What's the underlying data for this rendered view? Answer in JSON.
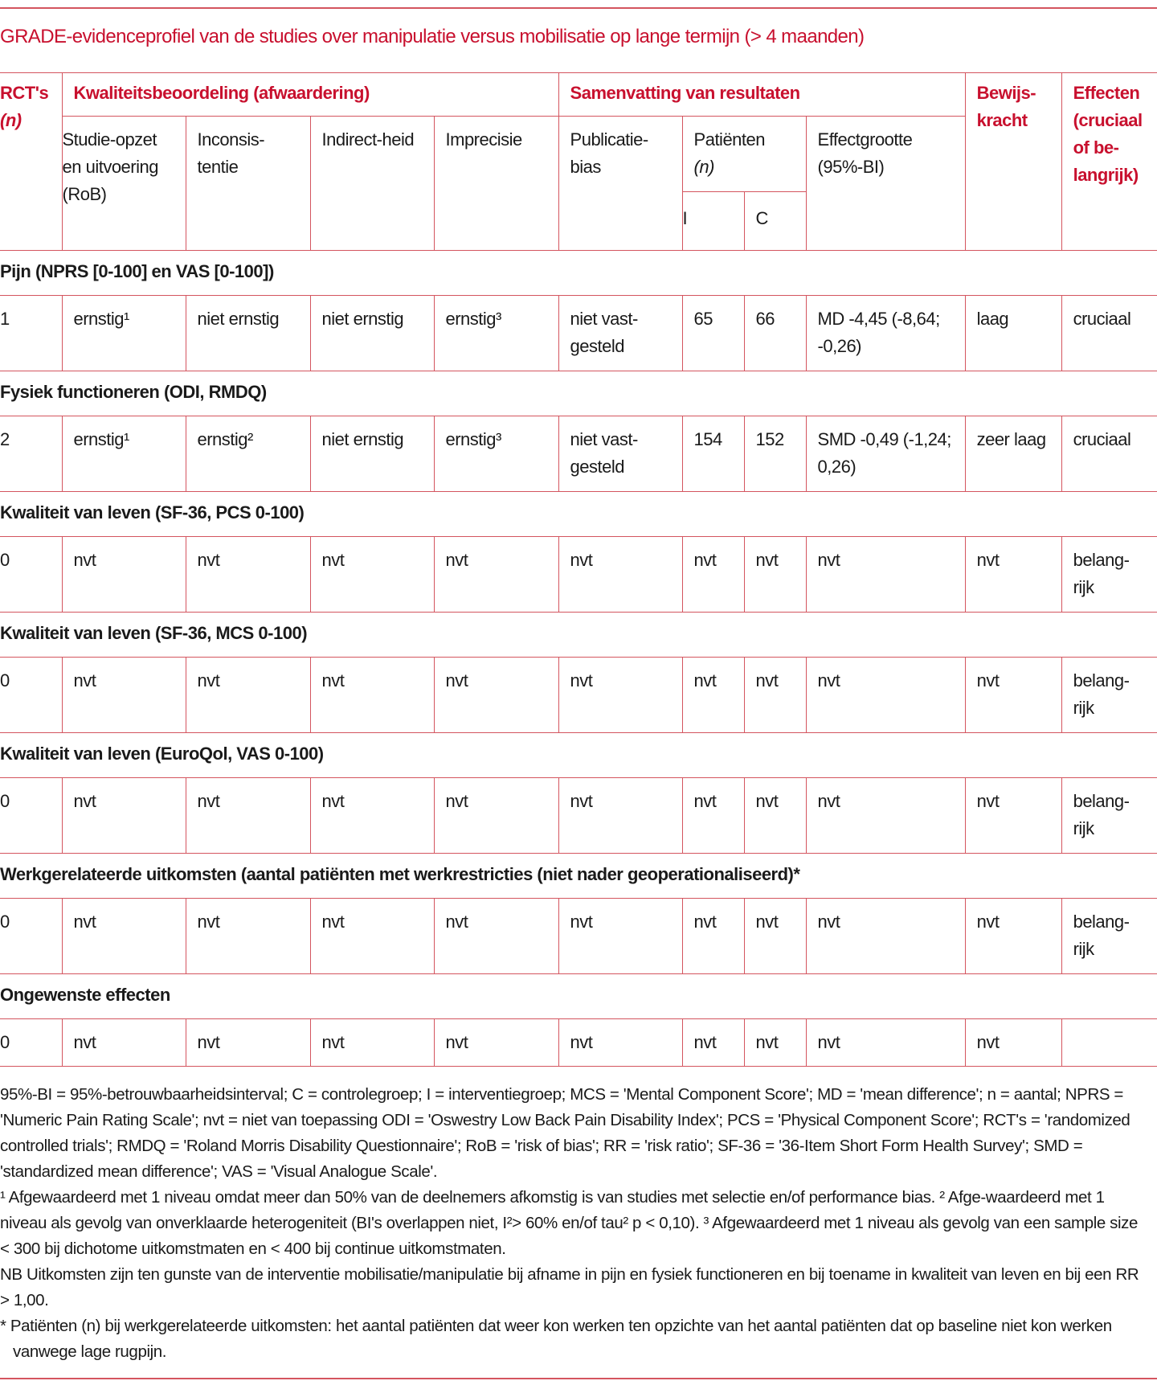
{
  "title": "GRADE-evidenceprofiel van de studies over manipulatie versus mobilisatie op lange termijn (> 4 maanden)",
  "header": {
    "rcts": "RCT's",
    "rcts_n": "(n)",
    "quality": "Kwaliteitsbeoordeling (afwaardering)",
    "summary": "Samenvatting van resultaten",
    "evidence": "Bewijs-kracht",
    "effects": "Effecten (cruciaal of be-langrijk)",
    "study_design": "Studie-opzet en uitvoering (RoB)",
    "inconsistency": "Inconsis-tentie",
    "indirectness": "Indirect-heid",
    "imprecision": "Imprecisie",
    "publication_bias": "Publicatie-bias",
    "patients": "Patiënten",
    "patients_n": "(n)",
    "effect_size": "Effectgrootte (95%-BI)",
    "i": "I",
    "c": "C"
  },
  "sections": [
    {
      "label": "Pijn (NPRS [0-100] en VAS [0-100])",
      "cells": [
        "1",
        " ernstig¹",
        "niet ernstig",
        "niet ernstig",
        "ernstig³",
        "niet vast-gesteld",
        "65",
        "66",
        "MD -4,45 (-8,64; -0,26)",
        "laag",
        "cruciaal"
      ]
    },
    {
      "label": "Fysiek functioneren (ODI, RMDQ)",
      "cells": [
        "2",
        "ernstig¹",
        "ernstig²",
        "niet ernstig",
        "ernstig³",
        "niet vast-gesteld",
        "154",
        "152",
        "SMD -0,49 (-1,24; 0,26)",
        "zeer laag",
        "cruciaal"
      ]
    },
    {
      "label": "Kwaliteit van leven (SF-36, PCS 0-100)",
      "cells": [
        "0",
        "nvt",
        "nvt",
        "nvt",
        "nvt",
        "nvt",
        "nvt",
        "nvt",
        "nvt",
        "nvt",
        "belang-rijk"
      ]
    },
    {
      "label": "Kwaliteit van leven (SF-36, MCS 0-100)",
      "cells": [
        "0",
        "nvt",
        "nvt",
        "nvt",
        "nvt",
        "nvt",
        "nvt",
        "nvt",
        "nvt",
        "nvt",
        "belang-rijk"
      ]
    },
    {
      "label": "Kwaliteit van leven (EuroQol, VAS 0-100)",
      "cells": [
        "0",
        "nvt",
        "nvt",
        "nvt",
        "nvt",
        "nvt",
        "nvt",
        "nvt",
        "nvt",
        "nvt",
        "belang-rijk"
      ]
    },
    {
      "label": "Werkgerelateerde uitkomsten (aantal patiënten met werkrestricties (niet nader geoperationaliseerd)*",
      "cells": [
        "0",
        "nvt",
        "nvt",
        "nvt",
        "nvt",
        "nvt",
        "nvt",
        "nvt",
        "nvt",
        "nvt",
        "belang-rijk"
      ]
    },
    {
      "label": "Ongewenste effecten",
      "cells": [
        "0",
        "nvt",
        "nvt",
        "nvt",
        "nvt",
        "nvt",
        "nvt",
        "nvt",
        "nvt",
        "nvt",
        ""
      ]
    }
  ],
  "footnotes": {
    "abbreviations": "95%-BI = 95%-betrouwbaarheidsinterval; C = controlegroep; I = interventiegroep; MCS = 'Mental Component Score'; MD = 'mean difference'; n = aantal; NPRS = 'Numeric Pain Rating Scale'; nvt = niet van toepassing ODI = 'Oswestry Low Back Pain Disability Index'; PCS = 'Physical Component Score'; RCT's = 'randomized controlled trials'; RMDQ = 'Roland Morris Disability Questionnaire'; RoB = 'risk of bias'; RR = 'risk ratio'; SF-36 = '36-Item Short Form Health Survey'; SMD = 'standardized mean difference'; VAS = 'Visual Analogue Scale'.",
    "downgrades": "¹ Afgewaardeerd met 1 niveau omdat meer dan 50% van de deelnemers afkomstig is van studies met selectie en/of performance bias. ² Afge-waardeerd met 1 niveau als gevolg van onverklaarde heterogeniteit (BI's overlappen niet, I²> 60% en/of tau² p < 0,10). ³ Afgewaardeerd met 1 niveau als gevolg van een sample size < 300 bij dichotome uitkomstmaten en < 400 bij continue uitkomstmaten.",
    "nb": "NB Uitkomsten zijn ten gunste van de interventie mobilisatie/manipulatie bij afname in pijn en fysiek functioneren en bij toename in kwaliteit van leven en bij een RR > 1,00.",
    "asterisk": "* Patiënten (n) bij werkgerelateerde uitkomsten: het aantal patiënten dat weer kon werken ten opzichte van het aantal patiënten dat op baseline niet kon werken vanwege lage rugpijn."
  },
  "colors": {
    "accent": "#c8102e",
    "rule": "#d4555f"
  }
}
